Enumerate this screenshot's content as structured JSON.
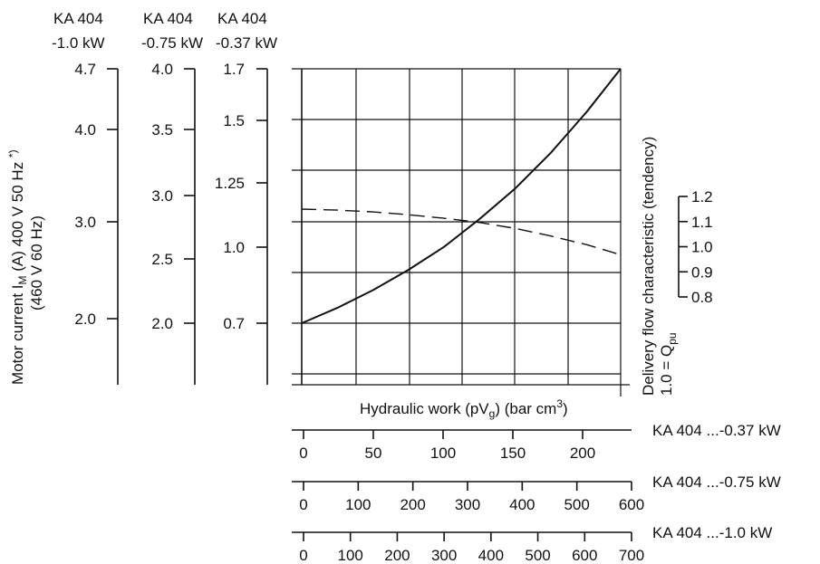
{
  "chart_data": {
    "type": "line",
    "title": "",
    "xlabel": "Hydraulic work (pV₉) (bar cm³)",
    "xlabel_parts": {
      "before": "Hydraulic work (pV",
      "sub": "g",
      "after": ") (bar cm",
      "sup": "3",
      "end": ")"
    },
    "ylabel_left": {
      "line1_before": "Motor current I",
      "line1_sub": "M",
      "line1_after": " (A) 400 V 50 Hz ",
      "line1_sup": "*)",
      "line2": "(460 V 60 Hz)"
    },
    "ylabel_right": {
      "line1": "Delivery flow characteristic (tendency)",
      "line2_before": "1.0 = Q",
      "line2_sub": "pu"
    },
    "x_axes": [
      {
        "name": "KA 404 ...-0.37 kW",
        "ticks": [
          "0",
          "50",
          "100",
          "150",
          "200"
        ],
        "tick_values": [
          0,
          50,
          100,
          150,
          200
        ],
        "range": [
          0,
          224
        ]
      },
      {
        "name": "KA 404 ...-0.75 kW",
        "ticks": [
          "0",
          "100",
          "200",
          "300",
          "400",
          "500",
          "600"
        ],
        "tick_values": [
          0,
          100,
          200,
          300,
          400,
          500,
          600
        ],
        "range": [
          0,
          580
        ]
      },
      {
        "name": "KA 404 ...-1.0 kW",
        "ticks": [
          "0",
          "100",
          "200",
          "300",
          "400",
          "500",
          "600",
          "700"
        ],
        "tick_values": [
          0,
          100,
          200,
          300,
          400,
          500,
          600,
          700
        ],
        "range": [
          0,
          690
        ]
      }
    ],
    "y_axes_left": [
      {
        "header": [
          "KA 404",
          "-1.0 kW"
        ],
        "ticks": [
          "4.7",
          "4.0",
          "3.0",
          "2.0"
        ],
        "tick_values": [
          4.7,
          4.0,
          3.0,
          2.0
        ]
      },
      {
        "header": [
          "KA 404",
          "-0.75 kW"
        ],
        "ticks": [
          "4.0",
          "3.5",
          "3.0",
          "2.5",
          "2.0"
        ],
        "tick_values": [
          4.0,
          3.5,
          3.0,
          2.5,
          2.0
        ]
      },
      {
        "header": [
          "KA 404",
          "-0.37 kW"
        ],
        "ticks": [
          "1.7",
          "1.5",
          "1.25",
          "1.0",
          "0.7"
        ],
        "tick_values": [
          1.7,
          1.5,
          1.25,
          1.0,
          0.7
        ]
      }
    ],
    "y_axis_right": {
      "ticks": [
        "1.2",
        "1.1",
        "1.0",
        "0.9",
        "0.8"
      ],
      "tick_values": [
        1.2,
        1.1,
        1.0,
        0.9,
        0.8
      ]
    },
    "grid": true,
    "series": [
      {
        "style": "solid",
        "axis": "motor current (KA 404 -0.37 kW scale)",
        "x": [
          0,
          25,
          50,
          75,
          100,
          125,
          150,
          175,
          200,
          224
        ],
        "y": [
          0.7,
          0.76,
          0.83,
          0.91,
          1.0,
          1.11,
          1.23,
          1.37,
          1.53,
          1.7
        ]
      },
      {
        "style": "dashed",
        "axis": "delivery flow characteristic",
        "x": [
          0,
          25,
          50,
          75,
          100,
          125,
          150,
          175,
          200,
          224
        ],
        "y": [
          1.15,
          1.146,
          1.139,
          1.128,
          1.114,
          1.097,
          1.074,
          1.044,
          1.01,
          0.97
        ]
      }
    ]
  }
}
